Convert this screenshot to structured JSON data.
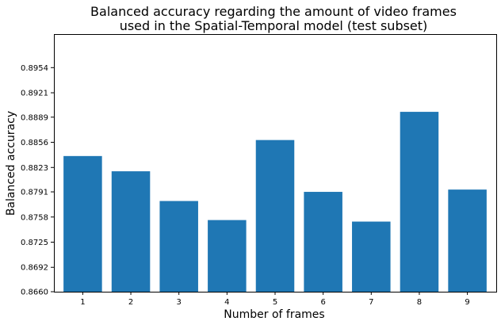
{
  "chart_data": {
    "type": "bar",
    "title_line1": "Balanced accuracy regarding the amount of video frames",
    "title_line2": "used in the Spatial-Temporal model (test subset)",
    "xlabel": "Number of frames",
    "ylabel": "Balanced accuracy",
    "categories": [
      "1",
      "2",
      "3",
      "4",
      "5",
      "6",
      "7",
      "8",
      "9"
    ],
    "values": [
      0.8838,
      0.8818,
      0.8779,
      0.8754,
      0.8859,
      0.8791,
      0.8752,
      0.8896,
      0.8794
    ],
    "ylim": [
      0.866,
      0.8998
    ],
    "yticks": [
      "0.8660",
      "0.8692",
      "0.8725",
      "0.8758",
      "0.8791",
      "0.8823",
      "0.8856",
      "0.8889",
      "0.8921",
      "0.8954"
    ],
    "bar_color": "#1f77b4",
    "grid": false,
    "legend": "none"
  }
}
